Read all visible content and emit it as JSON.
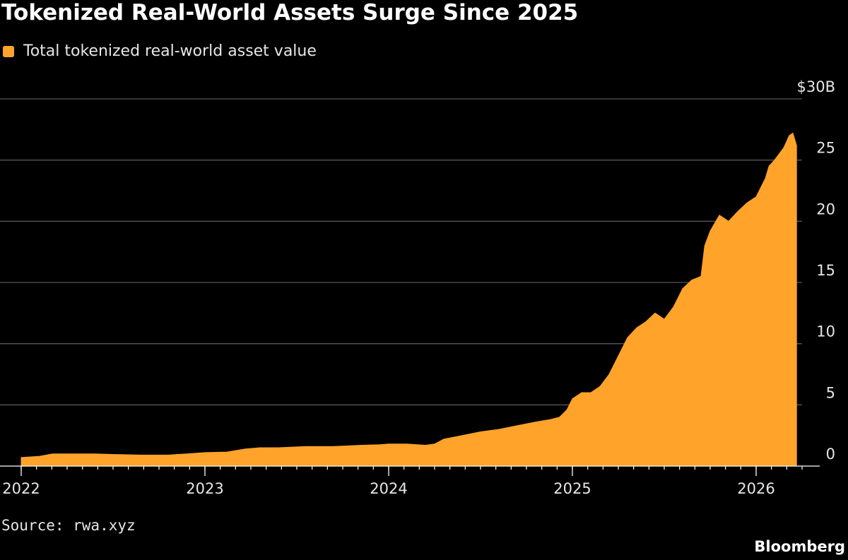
{
  "colors": {
    "background": "#000000",
    "area": "#ffa32b",
    "grid": "#555555",
    "text": "#e6e6e6"
  },
  "source": "Source: rwa.xyz",
  "brand": "Bloomberg",
  "chart_data": {
    "type": "area",
    "title": "Tokenized Real-World Assets Surge Since 2025",
    "legend": [
      "Total tokenized real-world asset value"
    ],
    "xlabel": "",
    "ylabel": "",
    "xlim": [
      2022.0,
      2026.25
    ],
    "ylim": [
      0,
      30
    ],
    "y_ticks": [
      0,
      5,
      10,
      15,
      20,
      25,
      30
    ],
    "y_tick_labels": [
      "0",
      "5",
      "10",
      "15",
      "20",
      "25",
      "$30B"
    ],
    "x_ticks": [
      2022,
      2023,
      2024,
      2025,
      2026
    ],
    "x_tick_labels": [
      "2022",
      "2023",
      "2024",
      "2025",
      "2026"
    ],
    "grid": true,
    "series": [
      {
        "name": "Total tokenized real-world asset value",
        "x": [
          2022.0,
          2022.1,
          2022.17,
          2022.25,
          2022.4,
          2022.5,
          2022.65,
          2022.8,
          2022.9,
          2023.0,
          2023.12,
          2023.22,
          2023.3,
          2023.4,
          2023.55,
          2023.7,
          2023.85,
          2023.95,
          2024.0,
          2024.1,
          2024.2,
          2024.25,
          2024.3,
          2024.4,
          2024.5,
          2024.6,
          2024.7,
          2024.8,
          2024.88,
          2024.93,
          2024.97,
          2025.0,
          2025.05,
          2025.1,
          2025.15,
          2025.2,
          2025.25,
          2025.3,
          2025.35,
          2025.4,
          2025.45,
          2025.5,
          2025.55,
          2025.6,
          2025.65,
          2025.7,
          2025.72,
          2025.75,
          2025.8,
          2025.85,
          2025.9,
          2025.95,
          2026.0,
          2026.05,
          2026.07,
          2026.1,
          2026.15,
          2026.18,
          2026.2,
          2026.22
        ],
        "values": [
          0.7,
          0.8,
          1.0,
          1.0,
          1.0,
          0.95,
          0.9,
          0.9,
          1.0,
          1.1,
          1.15,
          1.4,
          1.5,
          1.5,
          1.6,
          1.6,
          1.7,
          1.75,
          1.8,
          1.8,
          1.7,
          1.8,
          2.2,
          2.5,
          2.8,
          3.0,
          3.3,
          3.6,
          3.8,
          4.0,
          4.6,
          5.5,
          6.0,
          6.0,
          6.5,
          7.5,
          9.0,
          10.5,
          11.3,
          11.8,
          12.5,
          12.0,
          13.0,
          14.5,
          15.2,
          15.5,
          18.0,
          19.2,
          20.5,
          20.0,
          20.8,
          21.5,
          22.0,
          23.5,
          24.5,
          25.0,
          26.0,
          27.0,
          27.2,
          26.2
        ]
      }
    ]
  }
}
